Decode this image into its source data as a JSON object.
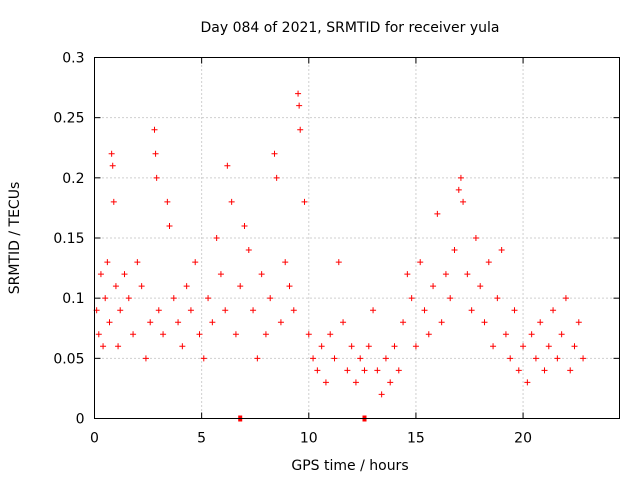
{
  "chart_data": {
    "type": "scatter",
    "title": "Day 084 of 2021, SRMTID for receiver yula",
    "xlabel": "GPS time / hours",
    "ylabel": "SRMTID / TECUs",
    "xlim": [
      0,
      24.5
    ],
    "ylim": [
      0,
      0.3
    ],
    "xticks": [
      0,
      5,
      10,
      15,
      20
    ],
    "yticks": [
      0,
      0.05,
      0.1,
      0.15,
      0.2,
      0.25,
      0.3
    ],
    "xtick_labels": [
      "0",
      "5",
      "10",
      "15",
      "20"
    ],
    "ytick_labels": [
      "0",
      "0.05",
      "0.1",
      "0.15",
      "0.2",
      "0.25",
      "0.3"
    ],
    "grid": true,
    "marker": "+",
    "color": "#ff0000",
    "data_range_hours": [
      0,
      22.9
    ],
    "gap_markers_x": [
      6.8,
      12.6
    ],
    "series": [
      {
        "name": "SRMTID",
        "points": [
          [
            0.1,
            0.09
          ],
          [
            0.2,
            0.07
          ],
          [
            0.3,
            0.12
          ],
          [
            0.4,
            0.06
          ],
          [
            0.5,
            0.1
          ],
          [
            0.6,
            0.13
          ],
          [
            0.7,
            0.08
          ],
          [
            0.8,
            0.22
          ],
          [
            0.85,
            0.21
          ],
          [
            0.9,
            0.18
          ],
          [
            1.0,
            0.11
          ],
          [
            1.1,
            0.06
          ],
          [
            1.2,
            0.09
          ],
          [
            1.4,
            0.12
          ],
          [
            1.6,
            0.1
          ],
          [
            1.8,
            0.07
          ],
          [
            2.0,
            0.13
          ],
          [
            2.2,
            0.11
          ],
          [
            2.4,
            0.05
          ],
          [
            2.6,
            0.08
          ],
          [
            2.8,
            0.24
          ],
          [
            2.85,
            0.22
          ],
          [
            2.9,
            0.2
          ],
          [
            3.0,
            0.09
          ],
          [
            3.2,
            0.07
          ],
          [
            3.4,
            0.18
          ],
          [
            3.5,
            0.16
          ],
          [
            3.7,
            0.1
          ],
          [
            3.9,
            0.08
          ],
          [
            4.1,
            0.06
          ],
          [
            4.3,
            0.11
          ],
          [
            4.5,
            0.09
          ],
          [
            4.7,
            0.13
          ],
          [
            4.9,
            0.07
          ],
          [
            5.1,
            0.05
          ],
          [
            5.3,
            0.1
          ],
          [
            5.5,
            0.08
          ],
          [
            5.7,
            0.15
          ],
          [
            5.9,
            0.12
          ],
          [
            6.1,
            0.09
          ],
          [
            6.2,
            0.21
          ],
          [
            6.4,
            0.18
          ],
          [
            6.6,
            0.07
          ],
          [
            6.8,
            0.11
          ],
          [
            7.0,
            0.16
          ],
          [
            7.2,
            0.14
          ],
          [
            7.4,
            0.09
          ],
          [
            7.6,
            0.05
          ],
          [
            7.8,
            0.12
          ],
          [
            8.0,
            0.07
          ],
          [
            8.2,
            0.1
          ],
          [
            8.4,
            0.22
          ],
          [
            8.5,
            0.2
          ],
          [
            8.7,
            0.08
          ],
          [
            8.9,
            0.13
          ],
          [
            9.1,
            0.11
          ],
          [
            9.3,
            0.09
          ],
          [
            9.5,
            0.27
          ],
          [
            9.55,
            0.26
          ],
          [
            9.6,
            0.24
          ],
          [
            9.8,
            0.18
          ],
          [
            10.0,
            0.07
          ],
          [
            10.2,
            0.05
          ],
          [
            10.4,
            0.04
          ],
          [
            10.6,
            0.06
          ],
          [
            10.8,
            0.03
          ],
          [
            11.0,
            0.07
          ],
          [
            11.2,
            0.05
          ],
          [
            11.4,
            0.13
          ],
          [
            11.6,
            0.08
          ],
          [
            11.8,
            0.04
          ],
          [
            12.0,
            0.06
          ],
          [
            12.2,
            0.03
          ],
          [
            12.4,
            0.05
          ],
          [
            12.6,
            0.04
          ],
          [
            12.8,
            0.06
          ],
          [
            13.0,
            0.09
          ],
          [
            13.2,
            0.04
          ],
          [
            13.4,
            0.02
          ],
          [
            13.6,
            0.05
          ],
          [
            13.8,
            0.03
          ],
          [
            14.0,
            0.06
          ],
          [
            14.2,
            0.04
          ],
          [
            14.4,
            0.08
          ],
          [
            14.6,
            0.12
          ],
          [
            14.8,
            0.1
          ],
          [
            15.0,
            0.06
          ],
          [
            15.2,
            0.13
          ],
          [
            15.4,
            0.09
          ],
          [
            15.6,
            0.07
          ],
          [
            15.8,
            0.11
          ],
          [
            16.0,
            0.17
          ],
          [
            16.2,
            0.08
          ],
          [
            16.4,
            0.12
          ],
          [
            16.6,
            0.1
          ],
          [
            16.8,
            0.14
          ],
          [
            17.0,
            0.19
          ],
          [
            17.1,
            0.2
          ],
          [
            17.2,
            0.18
          ],
          [
            17.4,
            0.12
          ],
          [
            17.6,
            0.09
          ],
          [
            17.8,
            0.15
          ],
          [
            18.0,
            0.11
          ],
          [
            18.2,
            0.08
          ],
          [
            18.4,
            0.13
          ],
          [
            18.6,
            0.06
          ],
          [
            18.8,
            0.1
          ],
          [
            19.0,
            0.14
          ],
          [
            19.2,
            0.07
          ],
          [
            19.4,
            0.05
          ],
          [
            19.6,
            0.09
          ],
          [
            19.8,
            0.04
          ],
          [
            20.0,
            0.06
          ],
          [
            20.2,
            0.03
          ],
          [
            20.4,
            0.07
          ],
          [
            20.6,
            0.05
          ],
          [
            20.8,
            0.08
          ],
          [
            21.0,
            0.04
          ],
          [
            21.2,
            0.06
          ],
          [
            21.4,
            0.09
          ],
          [
            21.6,
            0.05
          ],
          [
            21.8,
            0.07
          ],
          [
            22.0,
            0.1
          ],
          [
            22.2,
            0.04
          ],
          [
            22.4,
            0.06
          ],
          [
            22.6,
            0.08
          ],
          [
            22.8,
            0.05
          ]
        ]
      }
    ]
  }
}
